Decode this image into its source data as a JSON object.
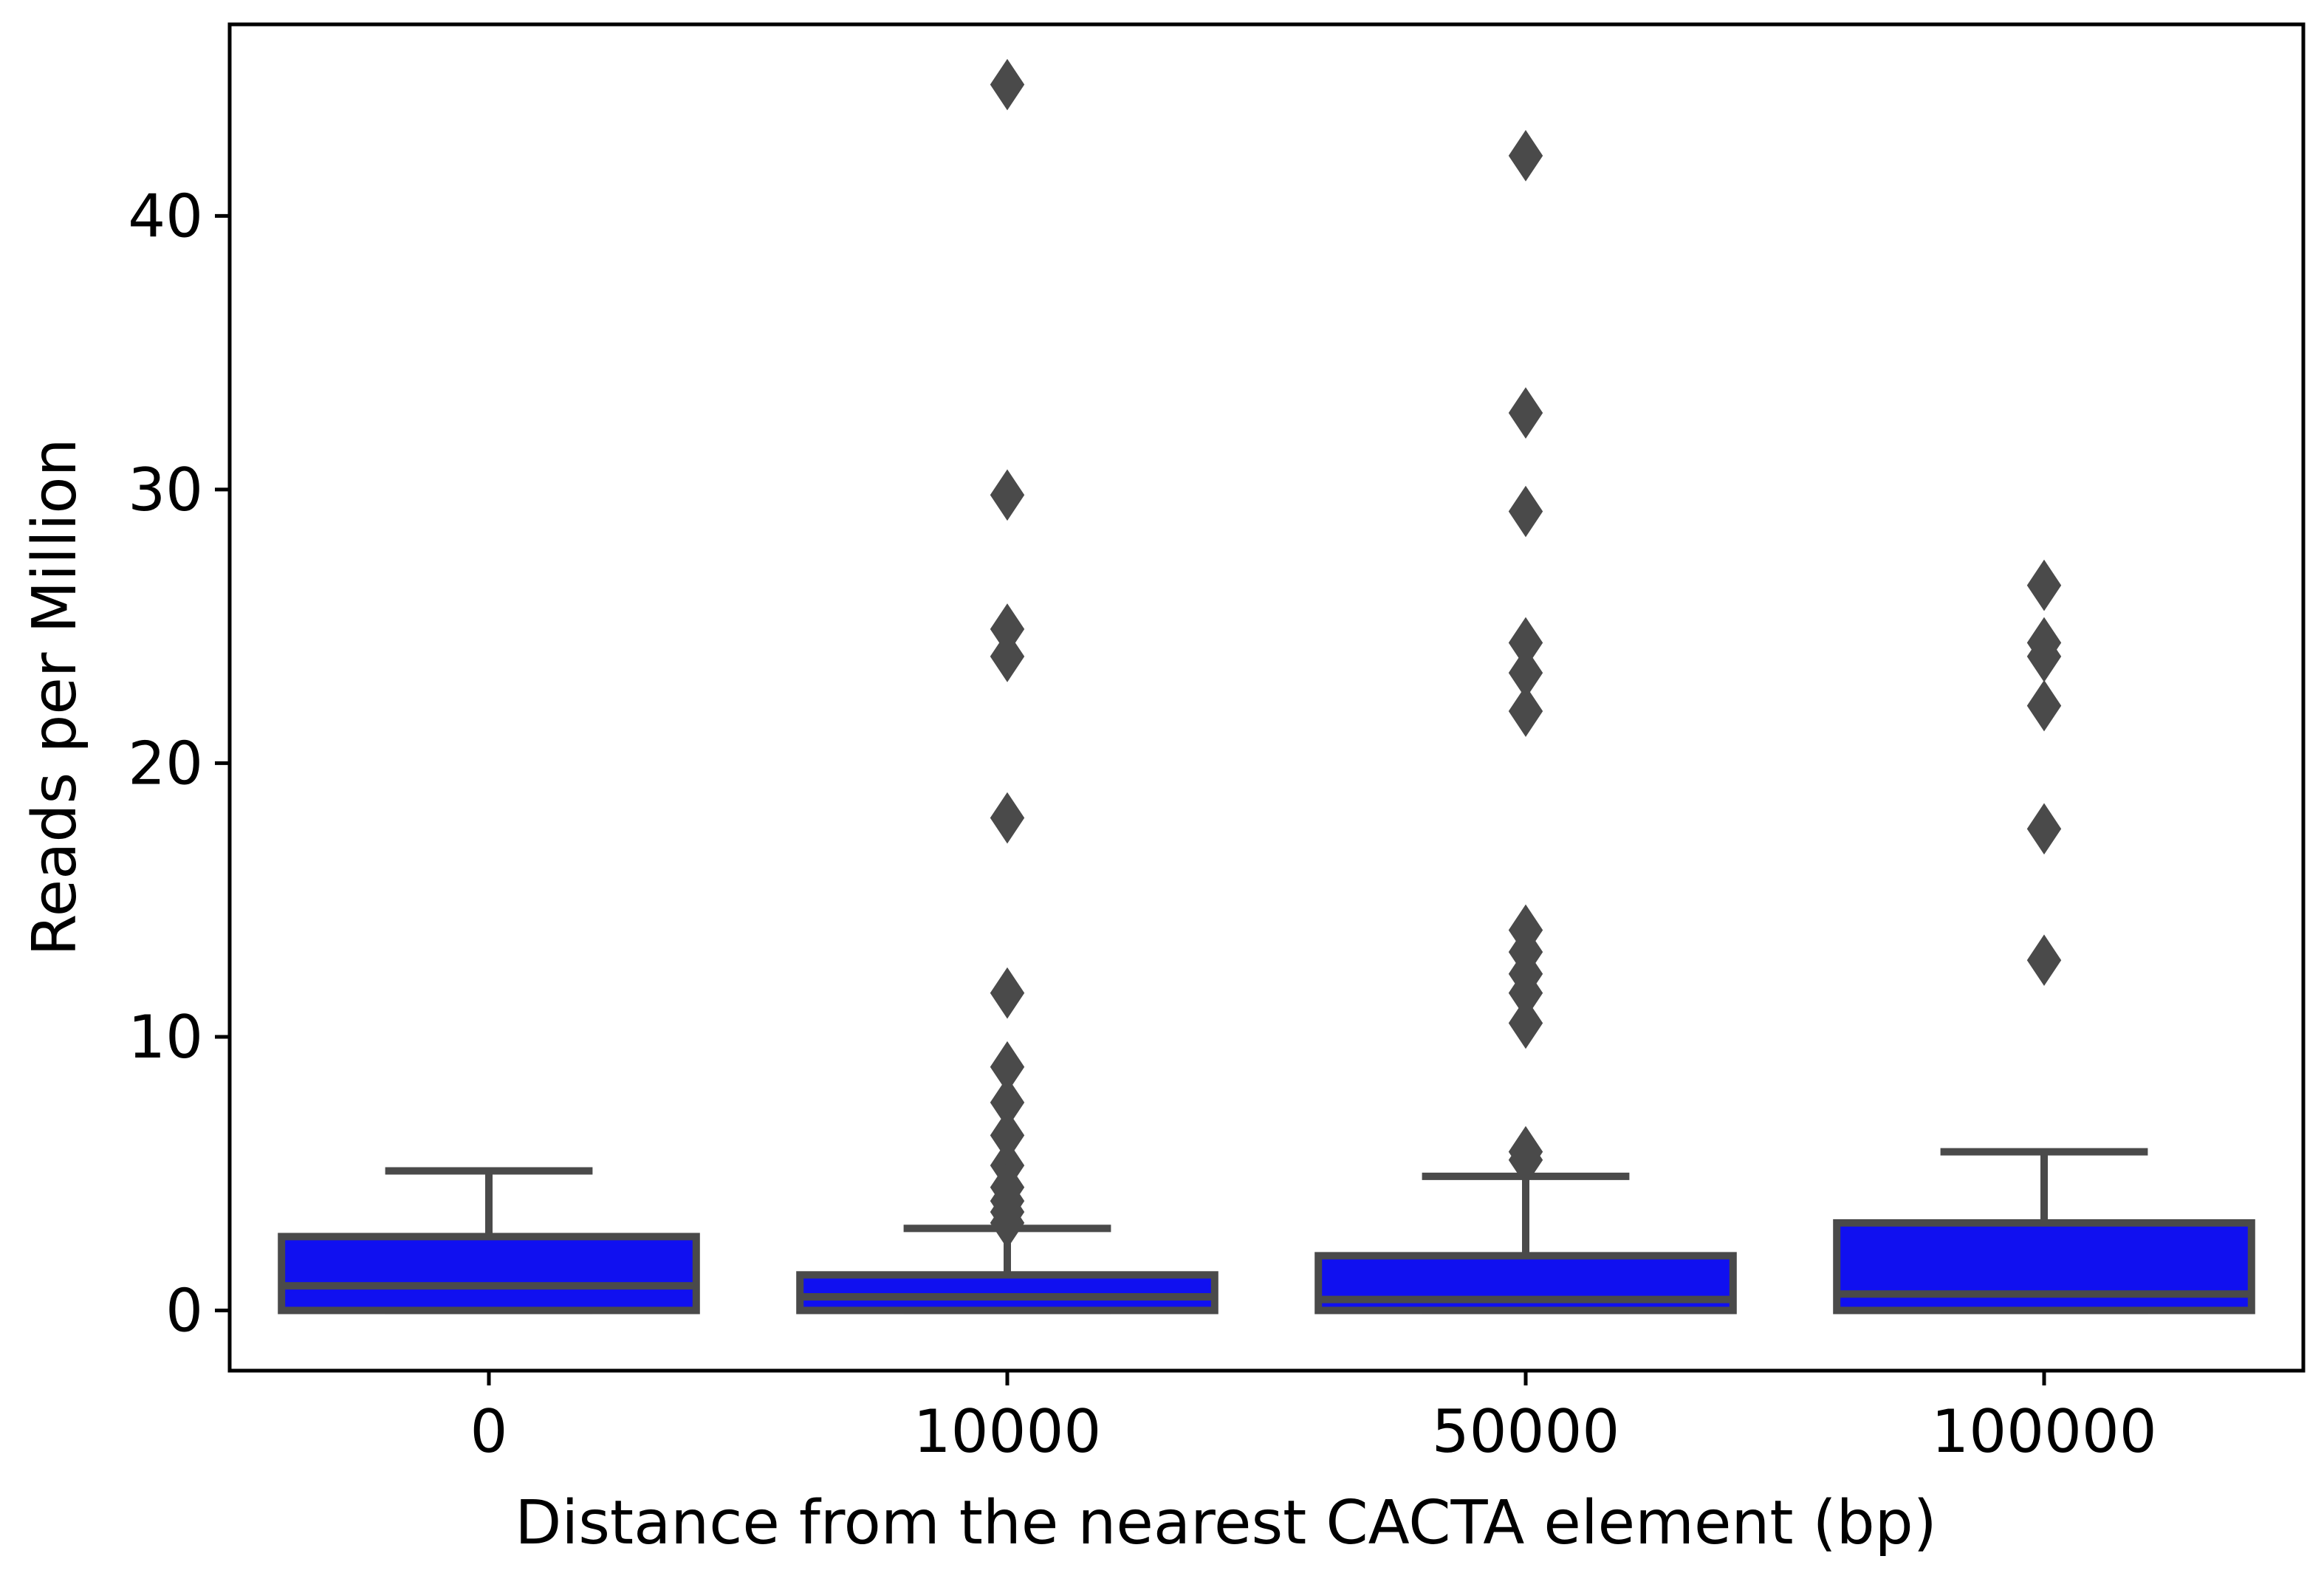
{
  "chart_data": {
    "type": "box",
    "title": "",
    "xlabel": "Distance from the nearest CACTA element (bp)",
    "ylabel": "Reads per Million",
    "categories": [
      "0",
      "10000",
      "50000",
      "100000"
    ],
    "ylim": [
      -2.2,
      47.0
    ],
    "yticks": [
      0,
      10,
      20,
      30,
      40
    ],
    "ytick_labels": [
      "0",
      "10",
      "20",
      "30",
      "40"
    ],
    "grid": false,
    "box_color": "#1010f0",
    "line_color": "#4a4a4a",
    "boxes": [
      {
        "category": "0",
        "whisker_low": 0.0,
        "q1": 0.0,
        "median": 0.9,
        "q3": 2.7,
        "whisker_high": 5.1,
        "outliers": []
      },
      {
        "category": "10000",
        "whisker_low": 0.0,
        "q1": 0.0,
        "median": 0.5,
        "q3": 1.3,
        "whisker_high": 3.0,
        "outliers": [
          44.8,
          29.8,
          24.9,
          23.9,
          18.0,
          11.6,
          8.9,
          7.6,
          6.4,
          5.3,
          4.5,
          4.0,
          3.6,
          3.2
        ]
      },
      {
        "category": "50000",
        "whisker_low": 0.0,
        "q1": 0.0,
        "median": 0.4,
        "q3": 2.0,
        "whisker_high": 4.9,
        "outliers": [
          42.2,
          32.8,
          29.2,
          24.4,
          23.3,
          21.9,
          13.9,
          13.1,
          12.3,
          11.6,
          10.5,
          5.8,
          5.5
        ]
      },
      {
        "category": "100000",
        "whisker_low": 0.0,
        "q1": 0.0,
        "median": 0.6,
        "q3": 3.2,
        "whisker_high": 5.8,
        "outliers": [
          26.5,
          24.4,
          23.9,
          22.1,
          17.6,
          12.8
        ]
      }
    ]
  }
}
